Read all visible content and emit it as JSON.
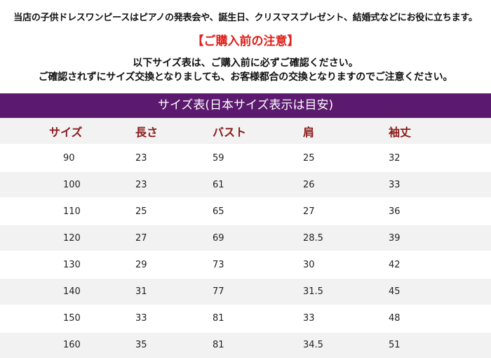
{
  "intro": "当店の子供ドレスワンピースはピアノの発表会や、誕生日、クリスマスプレゼント、結婚式などにお役に立ちます。",
  "notice": {
    "title": "【ご購入前の注意】",
    "line1": "以下サイズ表は、ご購入前に必ずご確認ください。",
    "line2": "ご確認されずにサイズ交換となりましても、お客様都合の交換となりますのでご注意ください。"
  },
  "table": {
    "title": "サイズ表(日本サイズ表示は目安)",
    "headers": [
      "サイズ",
      "長さ",
      "バスト",
      "肩",
      "袖丈"
    ],
    "rows": [
      [
        "90",
        "23",
        "59",
        "25",
        "32"
      ],
      [
        "100",
        "23",
        "61",
        "26",
        "33"
      ],
      [
        "110",
        "25",
        "65",
        "27",
        "36"
      ],
      [
        "120",
        "27",
        "69",
        "28.5",
        "39"
      ],
      [
        "130",
        "29",
        "73",
        "30",
        "42"
      ],
      [
        "140",
        "31",
        "77",
        "31.5",
        "45"
      ],
      [
        "150",
        "33",
        "81",
        "33",
        "48"
      ],
      [
        "160",
        "35",
        "81",
        "34.5",
        "51"
      ]
    ]
  },
  "colors": {
    "title_bar": "#5b1a6e",
    "notice_red": "#e0201a",
    "header_text": "#8b1b1b",
    "stripe": "#f2f2f2"
  }
}
